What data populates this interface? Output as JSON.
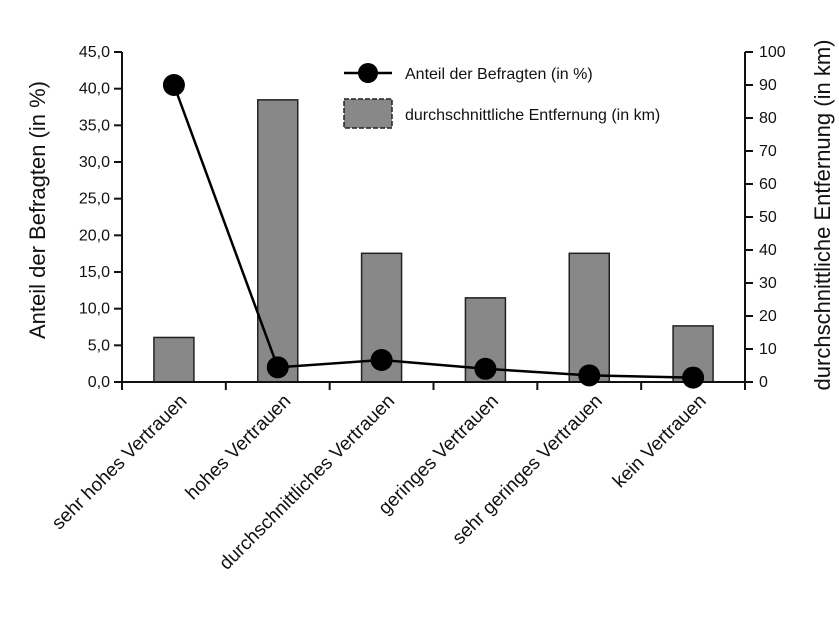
{
  "chart_data": {
    "type": "bar",
    "categories": [
      "sehr hohes Vertrauen",
      "hohes Vertrauen",
      "durchschnittliches Vertrauen",
      "geringes Vertrauen",
      "sehr geringes Vertrauen",
      "kein Vertrauen"
    ],
    "series": [
      {
        "name": "durchschnittliche Entfernung (in km)",
        "kind": "bar",
        "axis": "right",
        "values": [
          13.5,
          85.5,
          39,
          25.5,
          39,
          17
        ]
      },
      {
        "name": "Anteil der Befragten (in %)",
        "kind": "line",
        "axis": "left",
        "values": [
          40.5,
          2.0,
          3.0,
          1.8,
          0.9,
          0.6
        ]
      }
    ],
    "ylabel_left": "Anteil der Befragten (in %)",
    "ylabel_right": "durchschnittliche Entfernung (in km)",
    "ylim_left": [
      0,
      45
    ],
    "ylim_right": [
      0,
      100
    ],
    "yticks_left": [
      "0,0",
      "5,0",
      "10,0",
      "15,0",
      "20,0",
      "25,0",
      "30,0",
      "35,0",
      "40,0",
      "45,0"
    ],
    "yticks_right": [
      "0",
      "10",
      "20",
      "30",
      "40",
      "50",
      "60",
      "70",
      "80",
      "90",
      "100"
    ],
    "legend_placement": "top-right",
    "colors": {
      "bar_fill": "#888888",
      "bar_stroke": "#222222",
      "line": "#000000",
      "marker": "#000000"
    },
    "grid": false
  }
}
